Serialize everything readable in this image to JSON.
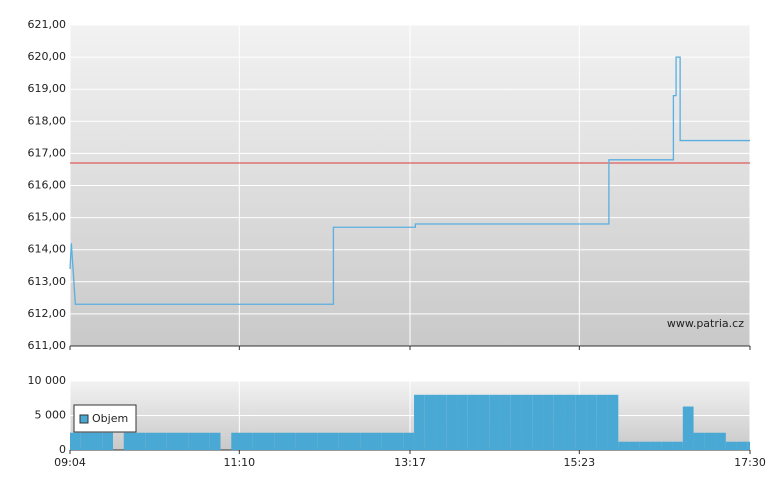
{
  "chart_data": [
    {
      "type": "line",
      "x": [
        544,
        545,
        548,
        740,
        740,
        801,
        801,
        945,
        945,
        993,
        993,
        995,
        995,
        998,
        998,
        1025,
        1025,
        1050
      ],
      "series": [
        {
          "color": "#5aaee0",
          "values": [
            613.4,
            614.2,
            612.3,
            612.3,
            614.7,
            614.7,
            614.8,
            614.8,
            616.8,
            616.8,
            618.8,
            618.8,
            620.0,
            620.0,
            617.4,
            617.4,
            617.4,
            617.4
          ]
        }
      ],
      "reference": 616.7,
      "reference_color": "#e03a3a",
      "xlim": [
        544,
        1050
      ],
      "ylim": [
        611,
        621
      ],
      "yticks": [
        {
          "value": 611,
          "label": "611,00"
        },
        {
          "value": 612,
          "label": "612,00"
        },
        {
          "value": 613,
          "label": "613,00"
        },
        {
          "value": 614,
          "label": "614,00"
        },
        {
          "value": 615,
          "label": "615,00"
        },
        {
          "value": 616,
          "label": "616,00"
        },
        {
          "value": 617,
          "label": "617,00"
        },
        {
          "value": 618,
          "label": "618,00"
        },
        {
          "value": 619,
          "label": "619,00"
        },
        {
          "value": 620,
          "label": "620,00"
        },
        {
          "value": 621,
          "label": "621,00"
        }
      ],
      "watermark": "www.patria.cz",
      "grid": true
    },
    {
      "type": "bar",
      "x": [
        544,
        552,
        560,
        568,
        576,
        584,
        592,
        600,
        608,
        616,
        624,
        632,
        640,
        648,
        656,
        664,
        672,
        680,
        688,
        696,
        704,
        712,
        720,
        728,
        736,
        744,
        752,
        760,
        768,
        776,
        784,
        792,
        800,
        808,
        816,
        824,
        832,
        840,
        848,
        856,
        864,
        872,
        880,
        888,
        896,
        904,
        912,
        920,
        928,
        936,
        944,
        952,
        960,
        968,
        976,
        984,
        992,
        1000,
        1008,
        1016,
        1024,
        1032,
        1040,
        1048
      ],
      "series": [
        {
          "name": "Objem",
          "color": "#4aa8d4",
          "values": [
            2500,
            2500,
            2500,
            2500,
            0,
            2500,
            2500,
            2500,
            2500,
            2500,
            2500,
            2500,
            2500,
            2500,
            0,
            2500,
            2500,
            2500,
            2500,
            2500,
            2500,
            2500,
            2500,
            2500,
            2500,
            2500,
            2500,
            2500,
            2500,
            2500,
            2500,
            2500,
            8000,
            8000,
            8000,
            8000,
            8000,
            8000,
            8000,
            8000,
            8000,
            8000,
            8000,
            8000,
            8000,
            8000,
            8000,
            8000,
            8000,
            8000,
            8000,
            1200,
            1200,
            1200,
            1200,
            1200,
            1200,
            6300,
            2500,
            2500,
            2500,
            1200,
            1200,
            1200
          ]
        }
      ],
      "bar_width": 8,
      "xlim": [
        544,
        1050
      ],
      "xticks": [
        {
          "value": 544,
          "label": "09:04"
        },
        {
          "value": 670,
          "label": "11:10"
        },
        {
          "value": 797,
          "label": "13:17"
        },
        {
          "value": 923,
          "label": "15:23"
        },
        {
          "value": 1050,
          "label": "17:30"
        }
      ],
      "ylim": [
        0,
        10000
      ],
      "yticks": [
        {
          "value": 0,
          "label": "0"
        },
        {
          "value": 5000,
          "label": "5 000"
        },
        {
          "value": 10000,
          "label": "10 000"
        }
      ],
      "legend": "top-left",
      "grid": true
    }
  ]
}
